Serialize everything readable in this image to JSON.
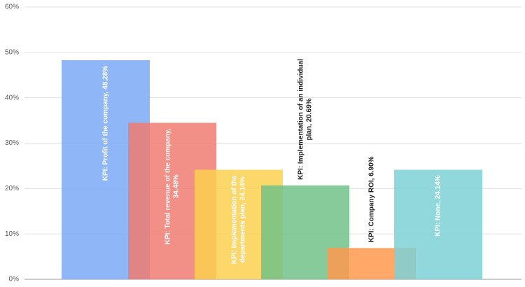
{
  "chart_data": {
    "type": "bar",
    "values": [
      48.28,
      34.48,
      24.14,
      20.69,
      6.9,
      24.14
    ],
    "value_labels": [
      [
        "KPI: Profit of the company, 48.28%"
      ],
      [
        "KPI: Total revenue of the company,",
        "34.48%"
      ],
      [
        "KPI: Implementation  of the",
        "departments plan, 24.14%"
      ],
      [
        "KPI: Implementation of an individual",
        "plan, 20.69%"
      ],
      [
        "KPI: Company ROI, 6.90%"
      ],
      [
        "KPI: None, 24.14%"
      ]
    ],
    "colors": [
      "#7baaf7",
      "#f07b72",
      "#fcd04f",
      "#71c287",
      "#ff994d",
      "#7ed1d7"
    ],
    "ylim": [
      0,
      60
    ],
    "yticks": [
      {
        "value": 0,
        "label": "0%"
      },
      {
        "value": 10,
        "label": "10%"
      },
      {
        "value": 20,
        "label": "20%"
      },
      {
        "value": 30,
        "label": "30%"
      },
      {
        "value": 40,
        "label": "40%"
      },
      {
        "value": 50,
        "label": "50%"
      },
      {
        "value": 60,
        "label": "60%"
      }
    ],
    "grid": true
  }
}
